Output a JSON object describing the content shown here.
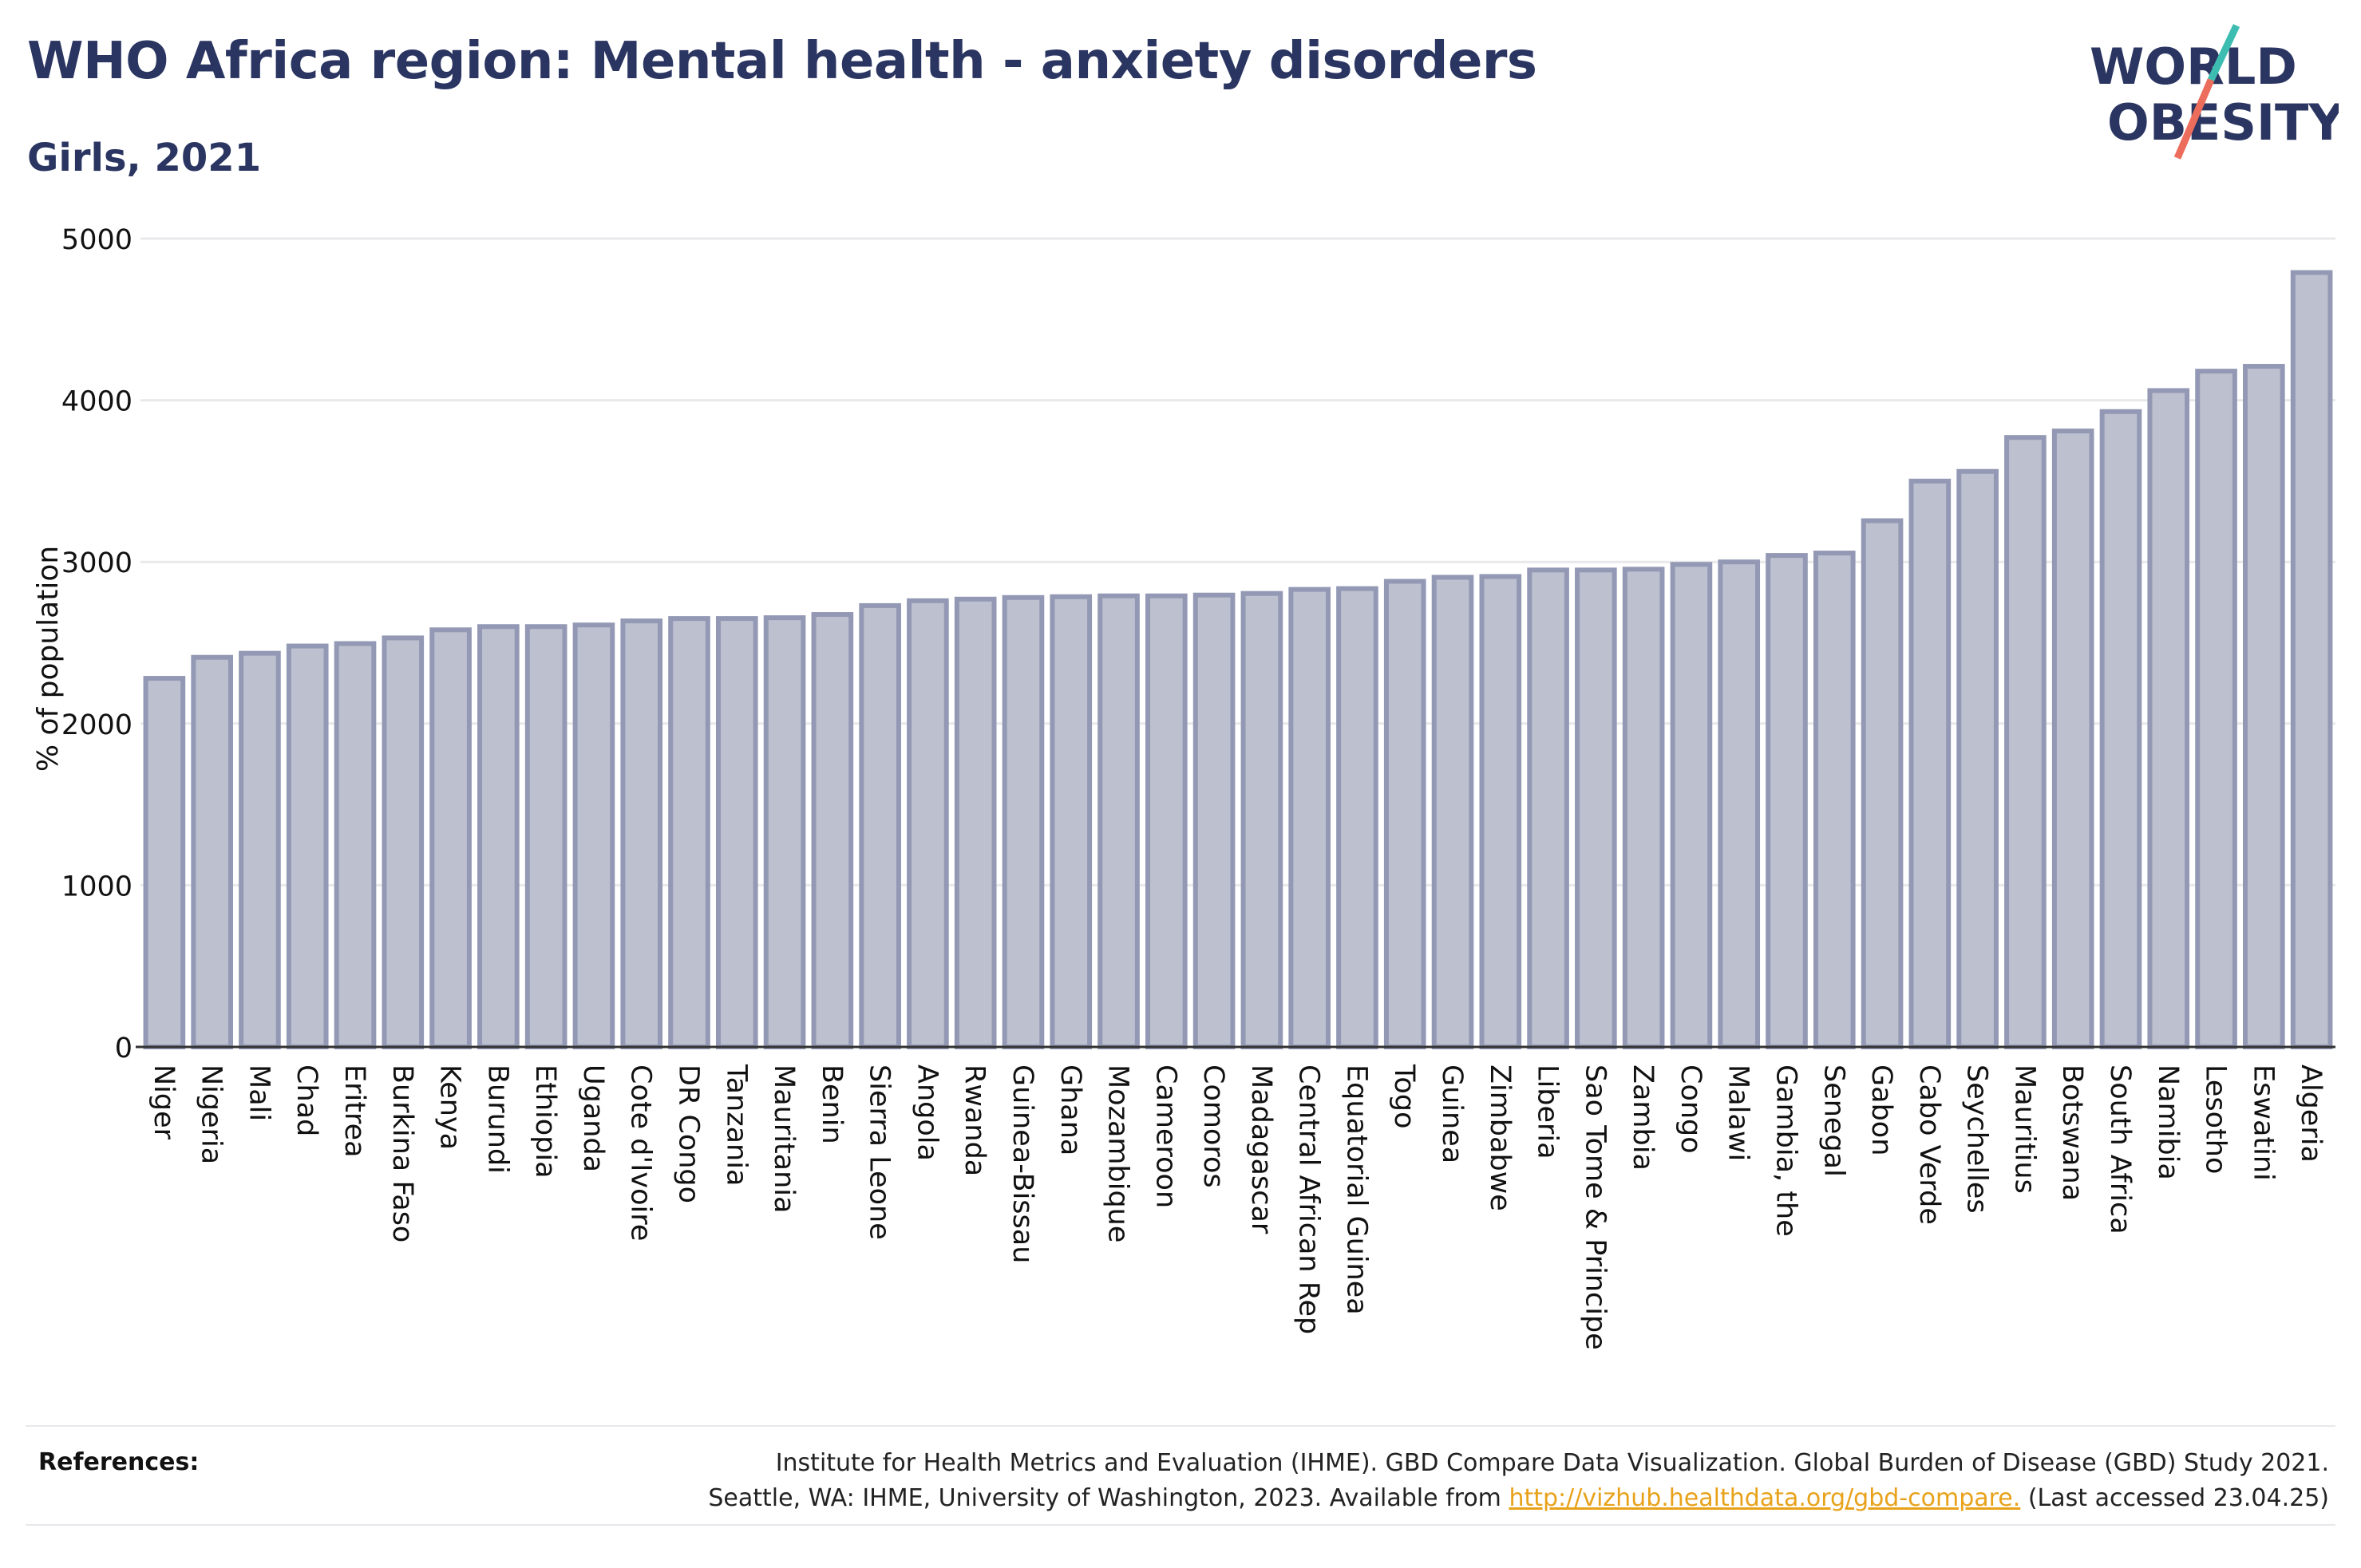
{
  "header": {
    "title": "WHO Africa region: Mental health - anxiety disorders",
    "subtitle": "Girls, 2021"
  },
  "logo": {
    "line1": "WORLD",
    "line2": "OBESITY",
    "accent_teal": "#3dbdb1",
    "accent_coral": "#ec6d5c",
    "text_color": "#2a3561"
  },
  "colors": {
    "title": "#2a3561",
    "bar_fill": "#bcc0cf",
    "bar_stroke": "#9399b4",
    "grid": "#e9e9ec",
    "axis": "#333333",
    "link": "#e8a21a"
  },
  "chart_data": {
    "type": "bar",
    "ylabel": "% of population",
    "ylim": [
      0,
      5000
    ],
    "yticks": [
      0,
      1000,
      2000,
      3000,
      4000,
      5000
    ],
    "grid": true,
    "categories": [
      "Niger",
      "Nigeria",
      "Mali",
      "Chad",
      "Eritrea",
      "Burkina Faso",
      "Kenya",
      "Burundi",
      "Ethiopia",
      "Uganda",
      "Cote d'Ivoire",
      "DR Congo",
      "Tanzania",
      "Mauritania",
      "Benin",
      "Sierra Leone",
      "Angola",
      "Rwanda",
      "Guinea-Bissau",
      "Ghana",
      "Mozambique",
      "Cameroon",
      "Comoros",
      "Madagascar",
      "Central African Rep",
      "Equatorial Guinea",
      "Togo",
      "Guinea",
      "Zimbabwe",
      "Liberia",
      "Sao Tome & Principe",
      "Zambia",
      "Congo",
      "Malawi",
      "Gambia, the",
      "Senegal",
      "Gabon",
      "Cabo Verde",
      "Seychelles",
      "Mauritius",
      "Botswana",
      "South Africa",
      "Namibia",
      "Lesotho",
      "Eswatini",
      "Algeria"
    ],
    "values": [
      2280,
      2410,
      2435,
      2480,
      2495,
      2530,
      2580,
      2600,
      2600,
      2610,
      2635,
      2650,
      2650,
      2655,
      2675,
      2730,
      2760,
      2770,
      2780,
      2785,
      2790,
      2790,
      2795,
      2805,
      2830,
      2835,
      2880,
      2905,
      2910,
      2950,
      2950,
      2955,
      2985,
      3000,
      3040,
      3055,
      3255,
      3500,
      3560,
      3770,
      3810,
      3930,
      4060,
      4180,
      4210,
      4790
    ]
  },
  "references": {
    "label": "References:",
    "line1": "Institute for Health Metrics and Evaluation (IHME). GBD Compare Data Visualization. Global Burden of Disease (GBD) Study 2021.",
    "line2_prefix": "Seattle, WA: IHME, University of Washington, 2023. Available from ",
    "link_text": "http://vizhub.healthdata.org/gbd-compare.",
    "line2_suffix": " (Last accessed 23.04.25)"
  }
}
